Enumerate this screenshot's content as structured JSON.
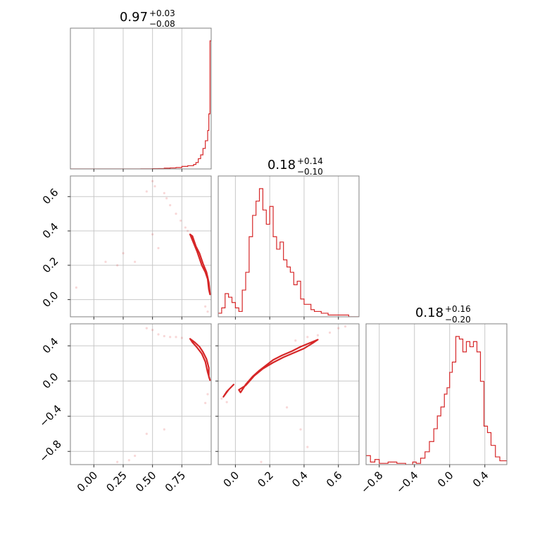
{
  "figure": {
    "accent_color": "#d62728",
    "frame_color": "#808080",
    "grid_color": "#c8c8c8",
    "panel_layout": "lower-triangular 3x3 corner plot",
    "grid": true
  },
  "chart_data": [
    {
      "type": "histogram",
      "panel": "diag-1",
      "title": "0.97",
      "title_upper": "+0.03",
      "title_lower": "−0.08",
      "xlim": [
        -0.2,
        1.0
      ],
      "gridlines_x": [
        0.0,
        0.25,
        0.5,
        0.75
      ],
      "bins": [
        [
          -0.2,
          0
        ],
        [
          0.4,
          0.1
        ],
        [
          0.5,
          0.2
        ],
        [
          0.55,
          0.3
        ],
        [
          0.6,
          0.6
        ],
        [
          0.65,
          0.8
        ],
        [
          0.7,
          1.1
        ],
        [
          0.75,
          2
        ],
        [
          0.8,
          2.5
        ],
        [
          0.85,
          3.5
        ],
        [
          0.87,
          5
        ],
        [
          0.89,
          8
        ],
        [
          0.91,
          11
        ],
        [
          0.93,
          16
        ],
        [
          0.95,
          22
        ],
        [
          0.97,
          30
        ],
        [
          0.98,
          43
        ],
        [
          0.99,
          100
        ]
      ]
    },
    {
      "type": "scatter+contour",
      "panel": "row2-col1",
      "xlim": [
        -0.2,
        1.0
      ],
      "ylim": [
        -0.1,
        0.72
      ],
      "gridlines_x": [
        0.0,
        0.25,
        0.5,
        0.75
      ],
      "gridlines_y": [
        0.0,
        0.2,
        0.4,
        0.6
      ],
      "y_tick_labels": [
        "0.0",
        "0.2",
        "0.4",
        "0.6"
      ],
      "contour_path_x": [
        0.82,
        0.85,
        0.88,
        0.9,
        0.92,
        0.95,
        0.97,
        0.98,
        0.99,
        0.98,
        0.96,
        0.93,
        0.9,
        0.87,
        0.84
      ],
      "contour_path_y": [
        0.38,
        0.33,
        0.28,
        0.24,
        0.2,
        0.16,
        0.12,
        0.06,
        0.03,
        0.1,
        0.16,
        0.21,
        0.27,
        0.31,
        0.37
      ],
      "scatter_x": [
        0.5,
        0.52,
        0.6,
        0.62,
        0.65,
        0.7,
        0.74,
        0.78,
        0.8,
        0.45,
        0.2,
        0.25,
        0.35,
        0.5,
        0.55,
        0.95,
        0.97,
        -0.15,
        0.1
      ],
      "scatter_y": [
        0.69,
        0.66,
        0.62,
        0.59,
        0.55,
        0.5,
        0.46,
        0.42,
        0.4,
        0.63,
        0.2,
        0.27,
        0.22,
        0.38,
        0.3,
        -0.04,
        -0.07,
        0.07,
        0.22
      ]
    },
    {
      "type": "histogram",
      "panel": "diag-2",
      "title": "0.18",
      "title_upper": "+0.14",
      "title_lower": "−0.10",
      "xlim": [
        -0.1,
        0.72
      ],
      "gridlines_x": [
        0.0,
        0.2,
        0.4,
        0.6
      ],
      "bins": [
        [
          -0.1,
          2
        ],
        [
          -0.08,
          5
        ],
        [
          -0.06,
          13
        ],
        [
          -0.04,
          11
        ],
        [
          -0.02,
          8
        ],
        [
          0.0,
          5
        ],
        [
          0.02,
          3
        ],
        [
          0.04,
          15
        ],
        [
          0.06,
          25
        ],
        [
          0.08,
          45
        ],
        [
          0.1,
          57
        ],
        [
          0.12,
          65
        ],
        [
          0.14,
          72
        ],
        [
          0.16,
          60
        ],
        [
          0.18,
          52
        ],
        [
          0.2,
          62
        ],
        [
          0.22,
          45
        ],
        [
          0.24,
          38
        ],
        [
          0.26,
          42
        ],
        [
          0.28,
          32
        ],
        [
          0.3,
          28
        ],
        [
          0.32,
          25
        ],
        [
          0.34,
          18
        ],
        [
          0.36,
          20
        ],
        [
          0.38,
          10
        ],
        [
          0.4,
          7
        ],
        [
          0.42,
          7
        ],
        [
          0.44,
          4
        ],
        [
          0.46,
          3
        ],
        [
          0.5,
          2
        ],
        [
          0.54,
          1
        ],
        [
          0.6,
          1
        ],
        [
          0.66,
          0
        ]
      ]
    },
    {
      "type": "scatter+contour",
      "panel": "row3-col1",
      "xlim": [
        -0.2,
        1.0
      ],
      "ylim": [
        -0.95,
        0.65
      ],
      "gridlines_x": [
        0.0,
        0.25,
        0.5,
        0.75
      ],
      "gridlines_y": [
        -0.8,
        -0.4,
        0.0,
        0.4
      ],
      "x_tick_labels": [
        "0.00",
        "0.25",
        "0.50",
        "0.75"
      ],
      "y_tick_labels": [
        "−0.8",
        "−0.4",
        "0.0",
        "0.4"
      ],
      "contour_path_x": [
        0.82,
        0.86,
        0.9,
        0.93,
        0.96,
        0.98,
        0.98,
        0.99,
        0.97,
        0.95,
        0.92,
        0.88,
        0.84
      ],
      "contour_path_y": [
        0.48,
        0.44,
        0.39,
        0.33,
        0.25,
        0.15,
        0.05,
        0.01,
        0.1,
        0.22,
        0.31,
        0.38,
        0.44
      ],
      "scatter_x": [
        0.45,
        0.5,
        0.55,
        0.6,
        0.65,
        0.7,
        0.75,
        0.95,
        0.97,
        0.6,
        0.2,
        0.3,
        0.35,
        0.45
      ],
      "scatter_y": [
        0.6,
        0.58,
        0.53,
        0.51,
        0.5,
        0.5,
        0.49,
        -0.25,
        -0.15,
        -0.55,
        -0.92,
        -0.9,
        -0.85,
        -0.6
      ]
    },
    {
      "type": "scatter+contour",
      "panel": "row3-col2",
      "xlim": [
        -0.1,
        0.72
      ],
      "ylim": [
        -0.95,
        0.65
      ],
      "gridlines_x": [
        0.0,
        0.2,
        0.4,
        0.6
      ],
      "gridlines_y": [
        -0.8,
        -0.4,
        0.0,
        0.4
      ],
      "x_tick_labels": [
        "0.0",
        "0.2",
        "0.4",
        "0.6"
      ],
      "contour_path_x": [
        0.03,
        0.06,
        0.1,
        0.14,
        0.18,
        0.22,
        0.27,
        0.33,
        0.38,
        0.43,
        0.48,
        0.45,
        0.4,
        0.34,
        0.28,
        0.22,
        0.16,
        0.11,
        0.06,
        0.02
      ],
      "contour_path_y": [
        -0.13,
        -0.04,
        0.05,
        0.12,
        0.18,
        0.24,
        0.29,
        0.34,
        0.39,
        0.43,
        0.47,
        0.43,
        0.37,
        0.32,
        0.27,
        0.21,
        0.14,
        0.06,
        -0.05,
        -0.1
      ],
      "contour2_path_x": [
        -0.07,
        -0.04,
        -0.01,
        -0.05,
        -0.07
      ],
      "contour2_path_y": [
        -0.18,
        -0.1,
        -0.04,
        -0.12,
        -0.18
      ],
      "scatter_x": [
        0.35,
        0.42,
        0.48,
        0.55,
        0.6,
        0.64,
        -0.08,
        -0.05,
        0.3,
        0.38,
        0.42,
        0.15
      ],
      "scatter_y": [
        0.46,
        0.5,
        0.52,
        0.55,
        0.6,
        0.62,
        -0.2,
        -0.24,
        -0.3,
        -0.55,
        -0.75,
        -0.92
      ]
    },
    {
      "type": "histogram",
      "panel": "diag-3",
      "title": "0.18",
      "title_upper": "+0.16",
      "title_lower": "−0.20",
      "xlim": [
        -0.95,
        0.65
      ],
      "gridlines_x": [
        -0.8,
        -0.4,
        0.0,
        0.4
      ],
      "x_tick_labels": [
        "−0.8",
        "−0.4",
        "0.0",
        "0.4"
      ],
      "bins": [
        [
          -0.95,
          7
        ],
        [
          -0.9,
          2
        ],
        [
          -0.85,
          4
        ],
        [
          -0.8,
          1
        ],
        [
          -0.7,
          2
        ],
        [
          -0.6,
          1
        ],
        [
          -0.5,
          0
        ],
        [
          -0.42,
          2
        ],
        [
          -0.38,
          1
        ],
        [
          -0.33,
          5
        ],
        [
          -0.28,
          10
        ],
        [
          -0.23,
          18
        ],
        [
          -0.18,
          28
        ],
        [
          -0.14,
          38
        ],
        [
          -0.1,
          45
        ],
        [
          -0.06,
          55
        ],
        [
          -0.03,
          60
        ],
        [
          0.0,
          72
        ],
        [
          0.03,
          80
        ],
        [
          0.07,
          100
        ],
        [
          0.11,
          98
        ],
        [
          0.15,
          88
        ],
        [
          0.19,
          96
        ],
        [
          0.23,
          92
        ],
        [
          0.27,
          96
        ],
        [
          0.31,
          88
        ],
        [
          0.35,
          65
        ],
        [
          0.39,
          30
        ],
        [
          0.43,
          25
        ],
        [
          0.47,
          15
        ],
        [
          0.52,
          6
        ],
        [
          0.57,
          3
        ],
        [
          0.62,
          3
        ]
      ]
    }
  ]
}
